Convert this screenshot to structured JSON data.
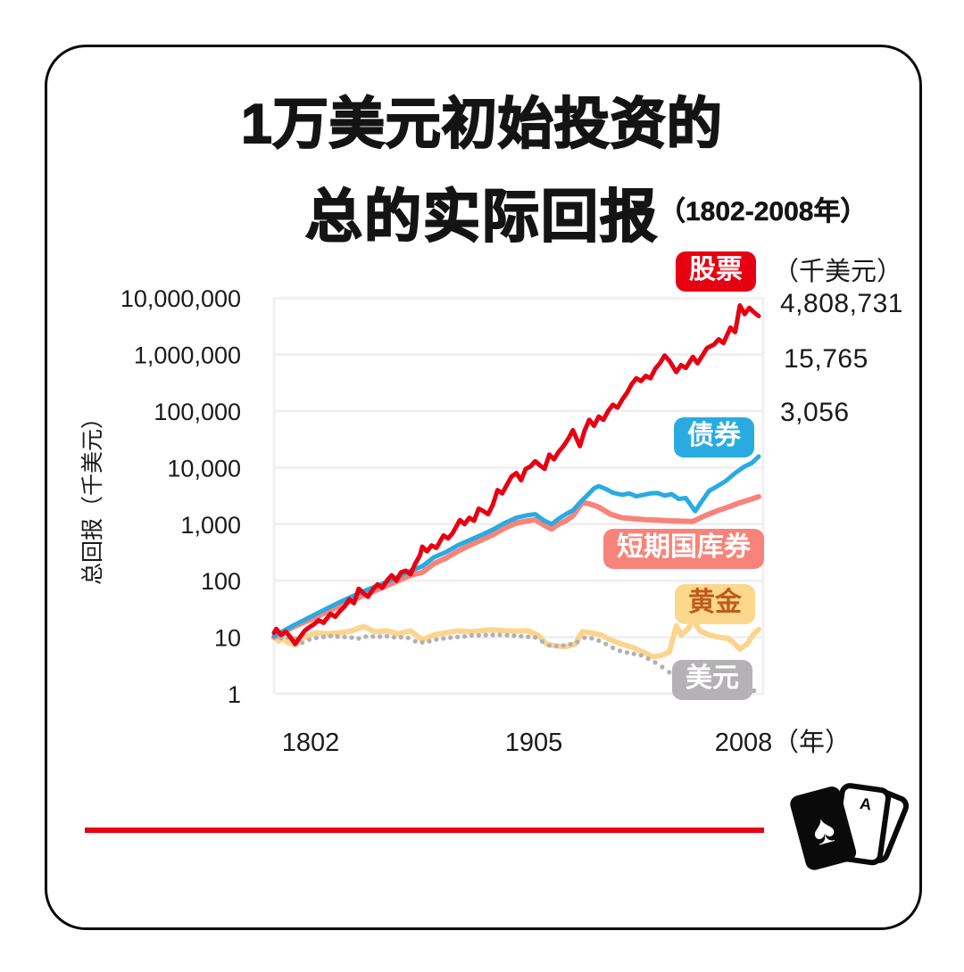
{
  "title": {
    "line1": "1万美元初始投资的",
    "line2": "总的实际回报",
    "period": "（1802-2008年）"
  },
  "chart_data": {
    "type": "line",
    "title": "1万美元初始投资的总的实际回报（1802-2008年）",
    "x_axis": {
      "ticks": [
        "1802",
        "1905",
        "2008"
      ],
      "unit": "（年）",
      "range": [
        1802,
        2008
      ],
      "grid": false
    },
    "y_axis": {
      "title": "总回报（千美元）",
      "scale": "log",
      "ticks": [
        "10,000,000",
        "1,000,000",
        "100,000",
        "10,000",
        "1,000",
        "100",
        "10",
        "1"
      ],
      "range": [
        1,
        10000000
      ],
      "grid": true
    },
    "unit_note": "（千美元）",
    "end_values": [
      "4,808,731",
      "15,765",
      "3,056"
    ],
    "legend_position": "inline-right",
    "grid_color": "#f0f0f0",
    "series": [
      {
        "id": "stocks",
        "name": "股票",
        "color": "#e60012",
        "label_bg": "#e60012",
        "label_fg": "#ffffff",
        "style": "line",
        "end_value": 4808731,
        "points": [
          [
            1802,
            12
          ],
          [
            1803,
            14
          ],
          [
            1805,
            11
          ],
          [
            1807,
            12.5
          ],
          [
            1809,
            10
          ],
          [
            1811,
            7.6
          ],
          [
            1813,
            10
          ],
          [
            1815,
            13
          ],
          [
            1817,
            15
          ],
          [
            1819,
            17
          ],
          [
            1821,
            20
          ],
          [
            1823,
            18
          ],
          [
            1826,
            26
          ],
          [
            1828,
            23
          ],
          [
            1830,
            29
          ],
          [
            1832,
            35
          ],
          [
            1834,
            47
          ],
          [
            1836,
            40
          ],
          [
            1838,
            72
          ],
          [
            1840,
            60
          ],
          [
            1842,
            52
          ],
          [
            1844,
            70
          ],
          [
            1846,
            86
          ],
          [
            1848,
            75
          ],
          [
            1850,
            100
          ],
          [
            1852,
            125
          ],
          [
            1854,
            100
          ],
          [
            1856,
            140
          ],
          [
            1858,
            150
          ],
          [
            1860,
            130
          ],
          [
            1862,
            200
          ],
          [
            1864,
            280
          ],
          [
            1865,
            400
          ],
          [
            1867,
            330
          ],
          [
            1869,
            420
          ],
          [
            1871,
            380
          ],
          [
            1874,
            630
          ],
          [
            1876,
            560
          ],
          [
            1878,
            700
          ],
          [
            1881,
            1180
          ],
          [
            1883,
            1000
          ],
          [
            1885,
            1300
          ],
          [
            1887,
            1150
          ],
          [
            1889,
            1880
          ],
          [
            1891,
            1700
          ],
          [
            1893,
            1500
          ],
          [
            1895,
            2200
          ],
          [
            1897,
            4000
          ],
          [
            1899,
            3500
          ],
          [
            1901,
            5000
          ],
          [
            1903,
            7000
          ],
          [
            1905,
            8000
          ],
          [
            1907,
            6000
          ],
          [
            1909,
            9500
          ],
          [
            1911,
            10500
          ],
          [
            1913,
            13000
          ],
          [
            1915,
            11000
          ],
          [
            1917,
            9500
          ],
          [
            1919,
            17000
          ],
          [
            1921,
            14000
          ],
          [
            1923,
            19000
          ],
          [
            1925,
            24000
          ],
          [
            1927,
            32000
          ],
          [
            1929,
            46000
          ],
          [
            1931,
            30000
          ],
          [
            1932,
            24000
          ],
          [
            1934,
            45000
          ],
          [
            1936,
            70000
          ],
          [
            1938,
            55000
          ],
          [
            1940,
            80000
          ],
          [
            1942,
            70000
          ],
          [
            1944,
            100000
          ],
          [
            1946,
            130000
          ],
          [
            1948,
            115000
          ],
          [
            1950,
            160000
          ],
          [
            1952,
            210000
          ],
          [
            1954,
            300000
          ],
          [
            1956,
            380000
          ],
          [
            1958,
            340000
          ],
          [
            1960,
            420000
          ],
          [
            1962,
            380000
          ],
          [
            1964,
            560000
          ],
          [
            1966,
            700000
          ],
          [
            1968,
            960000
          ],
          [
            1970,
            780000
          ],
          [
            1973,
            490000
          ],
          [
            1975,
            650000
          ],
          [
            1977,
            580000
          ],
          [
            1980,
            910000
          ],
          [
            1982,
            700000
          ],
          [
            1984,
            950000
          ],
          [
            1986,
            1300000
          ],
          [
            1989,
            1500000
          ],
          [
            1991,
            1860000
          ],
          [
            1993,
            1600000
          ],
          [
            1996,
            3000000
          ],
          [
            1998,
            2500000
          ],
          [
            2000,
            7400000
          ],
          [
            2002,
            5200000
          ],
          [
            2004,
            6700000
          ],
          [
            2006,
            5600000
          ],
          [
            2008,
            4808731
          ]
        ]
      },
      {
        "id": "bonds",
        "name": "债券",
        "color": "#29abe2",
        "label_bg": "#29abe2",
        "label_fg": "#ffffff",
        "style": "line",
        "end_value": 15765,
        "points": [
          [
            1802,
            10.5
          ],
          [
            1810,
            16
          ],
          [
            1820,
            26
          ],
          [
            1830,
            42
          ],
          [
            1840,
            65
          ],
          [
            1850,
            95
          ],
          [
            1860,
            150
          ],
          [
            1865,
            180
          ],
          [
            1870,
            260
          ],
          [
            1875,
            320
          ],
          [
            1880,
            420
          ],
          [
            1885,
            520
          ],
          [
            1890,
            640
          ],
          [
            1895,
            800
          ],
          [
            1900,
            1050
          ],
          [
            1905,
            1300
          ],
          [
            1910,
            1450
          ],
          [
            1913,
            1500
          ],
          [
            1917,
            1150
          ],
          [
            1920,
            1000
          ],
          [
            1923,
            1250
          ],
          [
            1926,
            1500
          ],
          [
            1929,
            1750
          ],
          [
            1932,
            2400
          ],
          [
            1935,
            3200
          ],
          [
            1938,
            4300
          ],
          [
            1940,
            4700
          ],
          [
            1943,
            4200
          ],
          [
            1946,
            3600
          ],
          [
            1950,
            3300
          ],
          [
            1953,
            3500
          ],
          [
            1956,
            3100
          ],
          [
            1959,
            3300
          ],
          [
            1962,
            3500
          ],
          [
            1965,
            3550
          ],
          [
            1968,
            3200
          ],
          [
            1971,
            3400
          ],
          [
            1974,
            2800
          ],
          [
            1977,
            2900
          ],
          [
            1981,
            1700
          ],
          [
            1984,
            2600
          ],
          [
            1987,
            3900
          ],
          [
            1990,
            4600
          ],
          [
            1994,
            5800
          ],
          [
            1998,
            8000
          ],
          [
            2002,
            10500
          ],
          [
            2005,
            12000
          ],
          [
            2008,
            15765
          ]
        ]
      },
      {
        "id": "bills",
        "name": "短期国库券",
        "color": "#f8837a",
        "label_bg": "#f8837a",
        "label_fg": "#ffffff",
        "style": "line",
        "end_value": 3056,
        "points": [
          [
            1802,
            10
          ],
          [
            1810,
            15
          ],
          [
            1820,
            23
          ],
          [
            1830,
            36
          ],
          [
            1840,
            55
          ],
          [
            1850,
            82
          ],
          [
            1860,
            125
          ],
          [
            1865,
            140
          ],
          [
            1870,
            200
          ],
          [
            1875,
            250
          ],
          [
            1880,
            330
          ],
          [
            1885,
            420
          ],
          [
            1890,
            520
          ],
          [
            1895,
            650
          ],
          [
            1900,
            850
          ],
          [
            1905,
            1050
          ],
          [
            1910,
            1150
          ],
          [
            1913,
            1200
          ],
          [
            1917,
            950
          ],
          [
            1920,
            820
          ],
          [
            1923,
            1000
          ],
          [
            1926,
            1150
          ],
          [
            1929,
            1400
          ],
          [
            1933,
            2400
          ],
          [
            1936,
            2300
          ],
          [
            1940,
            2000
          ],
          [
            1945,
            1500
          ],
          [
            1950,
            1300
          ],
          [
            1955,
            1250
          ],
          [
            1960,
            1200
          ],
          [
            1965,
            1180
          ],
          [
            1970,
            1150
          ],
          [
            1975,
            1130
          ],
          [
            1980,
            1120
          ],
          [
            1985,
            1400
          ],
          [
            1990,
            1700
          ],
          [
            1995,
            2000
          ],
          [
            2000,
            2400
          ],
          [
            2004,
            2700
          ],
          [
            2008,
            3056
          ]
        ]
      },
      {
        "id": "gold",
        "name": "黄金",
        "color": "#fbd58e",
        "label_bg": "#fcd88d",
        "label_fg": "#c05a1a",
        "style": "line",
        "points": [
          [
            1802,
            10
          ],
          [
            1804,
            8.5
          ],
          [
            1806,
            9.5
          ],
          [
            1808,
            8
          ],
          [
            1811,
            7.4
          ],
          [
            1815,
            10
          ],
          [
            1820,
            12
          ],
          [
            1825,
            11.5
          ],
          [
            1830,
            12
          ],
          [
            1835,
            13
          ],
          [
            1840,
            15.5
          ],
          [
            1845,
            12.5
          ],
          [
            1850,
            13
          ],
          [
            1855,
            11.5
          ],
          [
            1860,
            13
          ],
          [
            1865,
            9
          ],
          [
            1870,
            11
          ],
          [
            1875,
            12
          ],
          [
            1880,
            13
          ],
          [
            1885,
            12.5
          ],
          [
            1890,
            13
          ],
          [
            1895,
            13.5
          ],
          [
            1900,
            13
          ],
          [
            1905,
            12.8
          ],
          [
            1910,
            13
          ],
          [
            1914,
            11
          ],
          [
            1918,
            7.5
          ],
          [
            1922,
            7
          ],
          [
            1926,
            6.8
          ],
          [
            1930,
            7.5
          ],
          [
            1933,
            12.5
          ],
          [
            1937,
            12
          ],
          [
            1941,
            11
          ],
          [
            1945,
            9
          ],
          [
            1950,
            7.5
          ],
          [
            1955,
            6.5
          ],
          [
            1960,
            5.2
          ],
          [
            1963,
            4.5
          ],
          [
            1967,
            4.8
          ],
          [
            1970,
            5.5
          ],
          [
            1973,
            16
          ],
          [
            1975,
            11
          ],
          [
            1978,
            14
          ],
          [
            1980,
            20
          ],
          [
            1983,
            13
          ],
          [
            1987,
            11
          ],
          [
            1991,
            10
          ],
          [
            1995,
            9.5
          ],
          [
            1997,
            8.2
          ],
          [
            2000,
            6.2
          ],
          [
            2003,
            7.5
          ],
          [
            2006,
            11.5
          ],
          [
            2008,
            13.8
          ]
        ]
      },
      {
        "id": "dollar",
        "name": "美元",
        "color": "#b3b0b4",
        "label_bg": "#b5b1b6",
        "label_fg": "#ffffff",
        "style": "dotted",
        "points": [
          [
            1802,
            10
          ],
          [
            1806,
            9.5
          ],
          [
            1810,
            10
          ],
          [
            1814,
            8
          ],
          [
            1818,
            9.5
          ],
          [
            1822,
            10
          ],
          [
            1826,
            10.5
          ],
          [
            1830,
            10.2
          ],
          [
            1834,
            10
          ],
          [
            1838,
            9.5
          ],
          [
            1842,
            10.5
          ],
          [
            1846,
            10.2
          ],
          [
            1850,
            10.5
          ],
          [
            1854,
            9.8
          ],
          [
            1858,
            10.2
          ],
          [
            1862,
            8.5
          ],
          [
            1866,
            8
          ],
          [
            1870,
            9
          ],
          [
            1874,
            9.5
          ],
          [
            1878,
            10
          ],
          [
            1882,
            10.2
          ],
          [
            1886,
            10.8
          ],
          [
            1890,
            10.8
          ],
          [
            1894,
            11
          ],
          [
            1898,
            11
          ],
          [
            1902,
            10.8
          ],
          [
            1906,
            10.5
          ],
          [
            1910,
            10.2
          ],
          [
            1914,
            9.8
          ],
          [
            1918,
            7.2
          ],
          [
            1922,
            7
          ],
          [
            1926,
            7.2
          ],
          [
            1930,
            7.8
          ],
          [
            1934,
            9.8
          ],
          [
            1938,
            9.5
          ],
          [
            1942,
            8
          ],
          [
            1946,
            6.5
          ],
          [
            1950,
            5.5
          ],
          [
            1954,
            5.2
          ],
          [
            1958,
            4.8
          ],
          [
            1962,
            4
          ],
          [
            1966,
            3.2
          ],
          [
            1970,
            2.4
          ],
          [
            1974,
            1.9
          ],
          [
            1978,
            1.7
          ],
          [
            1982,
            1.5
          ],
          [
            1986,
            1.4
          ],
          [
            1990,
            1.35
          ],
          [
            1994,
            1.3
          ],
          [
            1998,
            1.25
          ],
          [
            2002,
            1.2
          ],
          [
            2008,
            1.1
          ]
        ]
      }
    ]
  },
  "footer": {
    "divider_color": "#e60012",
    "logo_icon": "playing-cards-icon",
    "card_letter": "A",
    "spade": "♠"
  }
}
